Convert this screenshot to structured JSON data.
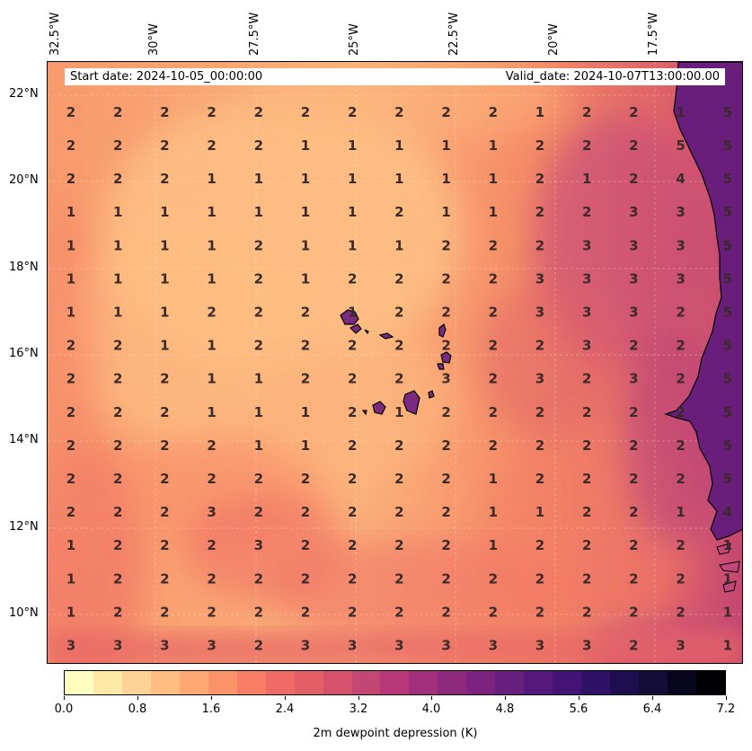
{
  "header": {
    "start_date": "Start date: 2024-10-05_00:00:00",
    "valid_date": "Valid_date: 2024-10-07T13:00:00.00"
  },
  "axes": {
    "lon_labels": [
      "32.5°W",
      "30°W",
      "27.5°W",
      "25°W",
      "22.5°W",
      "20°W",
      "17.5°W"
    ],
    "lat_labels": [
      "22°N",
      "20°N",
      "18°N",
      "16°N",
      "14°N",
      "12°N",
      "10°N"
    ]
  },
  "colorbar": {
    "title": "2m dewpoint depression (K)",
    "tick_labels": [
      "0.0",
      "0.8",
      "1.6",
      "2.4",
      "3.2",
      "4.0",
      "4.8",
      "5.6",
      "6.4",
      "7.2"
    ],
    "min": 0.0,
    "max": 7.2,
    "colors": [
      "#fcfdbf",
      "#fde8a6",
      "#fed395",
      "#febe81",
      "#fea973",
      "#fb9268",
      "#f77e65",
      "#f06b65",
      "#e35e67",
      "#d6526c",
      "#c44773",
      "#b73779",
      "#a2307c",
      "#8f297d",
      "#7b237f",
      "#67207f",
      "#55197b",
      "#431475",
      "#2f1166",
      "#1e0e4f",
      "#120c36",
      "#08061e",
      "#000004"
    ]
  },
  "grid_values": [
    [
      "3",
      "3",
      "3",
      "3",
      "2",
      "3",
      "3",
      "3",
      "3",
      "3",
      "3",
      "3",
      "2",
      "3",
      "1"
    ],
    [
      "1",
      "2",
      "2",
      "2",
      "2",
      "2",
      "2",
      "2",
      "2",
      "2",
      "2",
      "2",
      "2",
      "2",
      "1"
    ],
    [
      "1",
      "2",
      "2",
      "2",
      "2",
      "2",
      "2",
      "2",
      "2",
      "2",
      "2",
      "2",
      "2",
      "2",
      "1"
    ],
    [
      "1",
      "2",
      "2",
      "2",
      "3",
      "2",
      "2",
      "2",
      "2",
      "1",
      "2",
      "2",
      "2",
      "2",
      "1"
    ],
    [
      "2",
      "2",
      "2",
      "3",
      "2",
      "2",
      "2",
      "2",
      "2",
      "1",
      "1",
      "2",
      "2",
      "1",
      "4"
    ],
    [
      "2",
      "2",
      "2",
      "2",
      "2",
      "2",
      "2",
      "2",
      "2",
      "1",
      "2",
      "2",
      "2",
      "2",
      "5"
    ],
    [
      "2",
      "2",
      "2",
      "2",
      "1",
      "1",
      "2",
      "2",
      "2",
      "2",
      "2",
      "2",
      "2",
      "2",
      "5"
    ],
    [
      "2",
      "2",
      "2",
      "1",
      "1",
      "1",
      "2",
      "1",
      "2",
      "2",
      "2",
      "2",
      "2",
      "2",
      "5"
    ],
    [
      "2",
      "2",
      "2",
      "1",
      "1",
      "2",
      "2",
      "2",
      "3",
      "2",
      "3",
      "2",
      "3",
      "2",
      "5"
    ],
    [
      "2",
      "2",
      "1",
      "1",
      "2",
      "2",
      "2",
      "2",
      "2",
      "2",
      "2",
      "3",
      "2",
      "2",
      "5"
    ],
    [
      "1",
      "1",
      "1",
      "2",
      "2",
      "2",
      "1",
      "2",
      "2",
      "2",
      "3",
      "3",
      "3",
      "2",
      "5"
    ],
    [
      "1",
      "1",
      "1",
      "1",
      "2",
      "1",
      "2",
      "2",
      "2",
      "2",
      "3",
      "3",
      "3",
      "3",
      "5"
    ],
    [
      "1",
      "1",
      "1",
      "1",
      "2",
      "1",
      "1",
      "1",
      "2",
      "2",
      "2",
      "3",
      "3",
      "3",
      "5"
    ],
    [
      "1",
      "1",
      "1",
      "1",
      "1",
      "1",
      "1",
      "2",
      "1",
      "1",
      "2",
      "2",
      "3",
      "3",
      "5"
    ],
    [
      "2",
      "2",
      "2",
      "1",
      "1",
      "1",
      "1",
      "1",
      "1",
      "1",
      "2",
      "1",
      "2",
      "4",
      "5"
    ],
    [
      "2",
      "2",
      "2",
      "2",
      "2",
      "1",
      "1",
      "1",
      "1",
      "1",
      "2",
      "2",
      "2",
      "5",
      "5"
    ],
    [
      "2",
      "2",
      "2",
      "2",
      "2",
      "2",
      "2",
      "2",
      "2",
      "2",
      "1",
      "2",
      "2",
      "1",
      "5"
    ]
  ]
}
